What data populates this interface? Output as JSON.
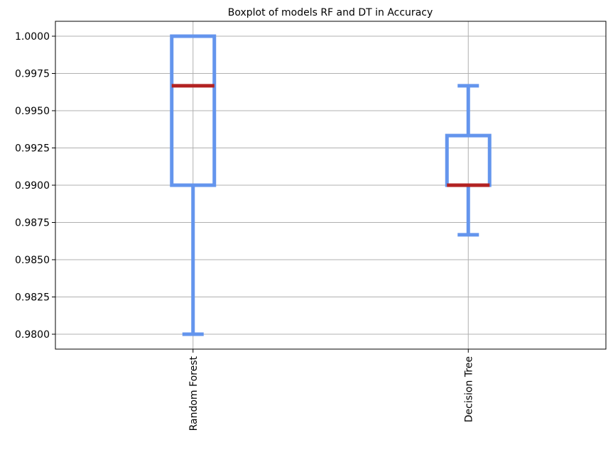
{
  "chart_data": {
    "type": "boxplot",
    "title": "Boxplot of models RF and DT in Accuracy",
    "xlabel": "",
    "ylabel": "",
    "categories": [
      "Random Forest",
      "Decision Tree"
    ],
    "boxes": [
      {
        "category": "Random Forest",
        "whisker_low": 0.98,
        "q1": 0.99,
        "median": 0.99667,
        "q3": 1.0,
        "whisker_high": 1.0
      },
      {
        "category": "Decision Tree",
        "whisker_low": 0.98667,
        "q1": 0.99,
        "median": 0.99,
        "q3": 0.99333,
        "whisker_high": 0.99667
      }
    ],
    "ylim": [
      0.979,
      1.001
    ],
    "yticks": [
      0.98,
      0.9825,
      0.985,
      0.9875,
      0.99,
      0.9925,
      0.995,
      0.9975,
      1.0
    ],
    "ytick_labels": [
      "0.9800",
      "0.9825",
      "0.9850",
      "0.9875",
      "0.9900",
      "0.9925",
      "0.9950",
      "0.9975",
      "1.0000"
    ],
    "grid": true,
    "xtick_rotation": "vertical",
    "colors": {
      "box": "#6495ED",
      "median": "#B22222",
      "grid": "#b0b0b0",
      "axes": "#000000"
    }
  }
}
